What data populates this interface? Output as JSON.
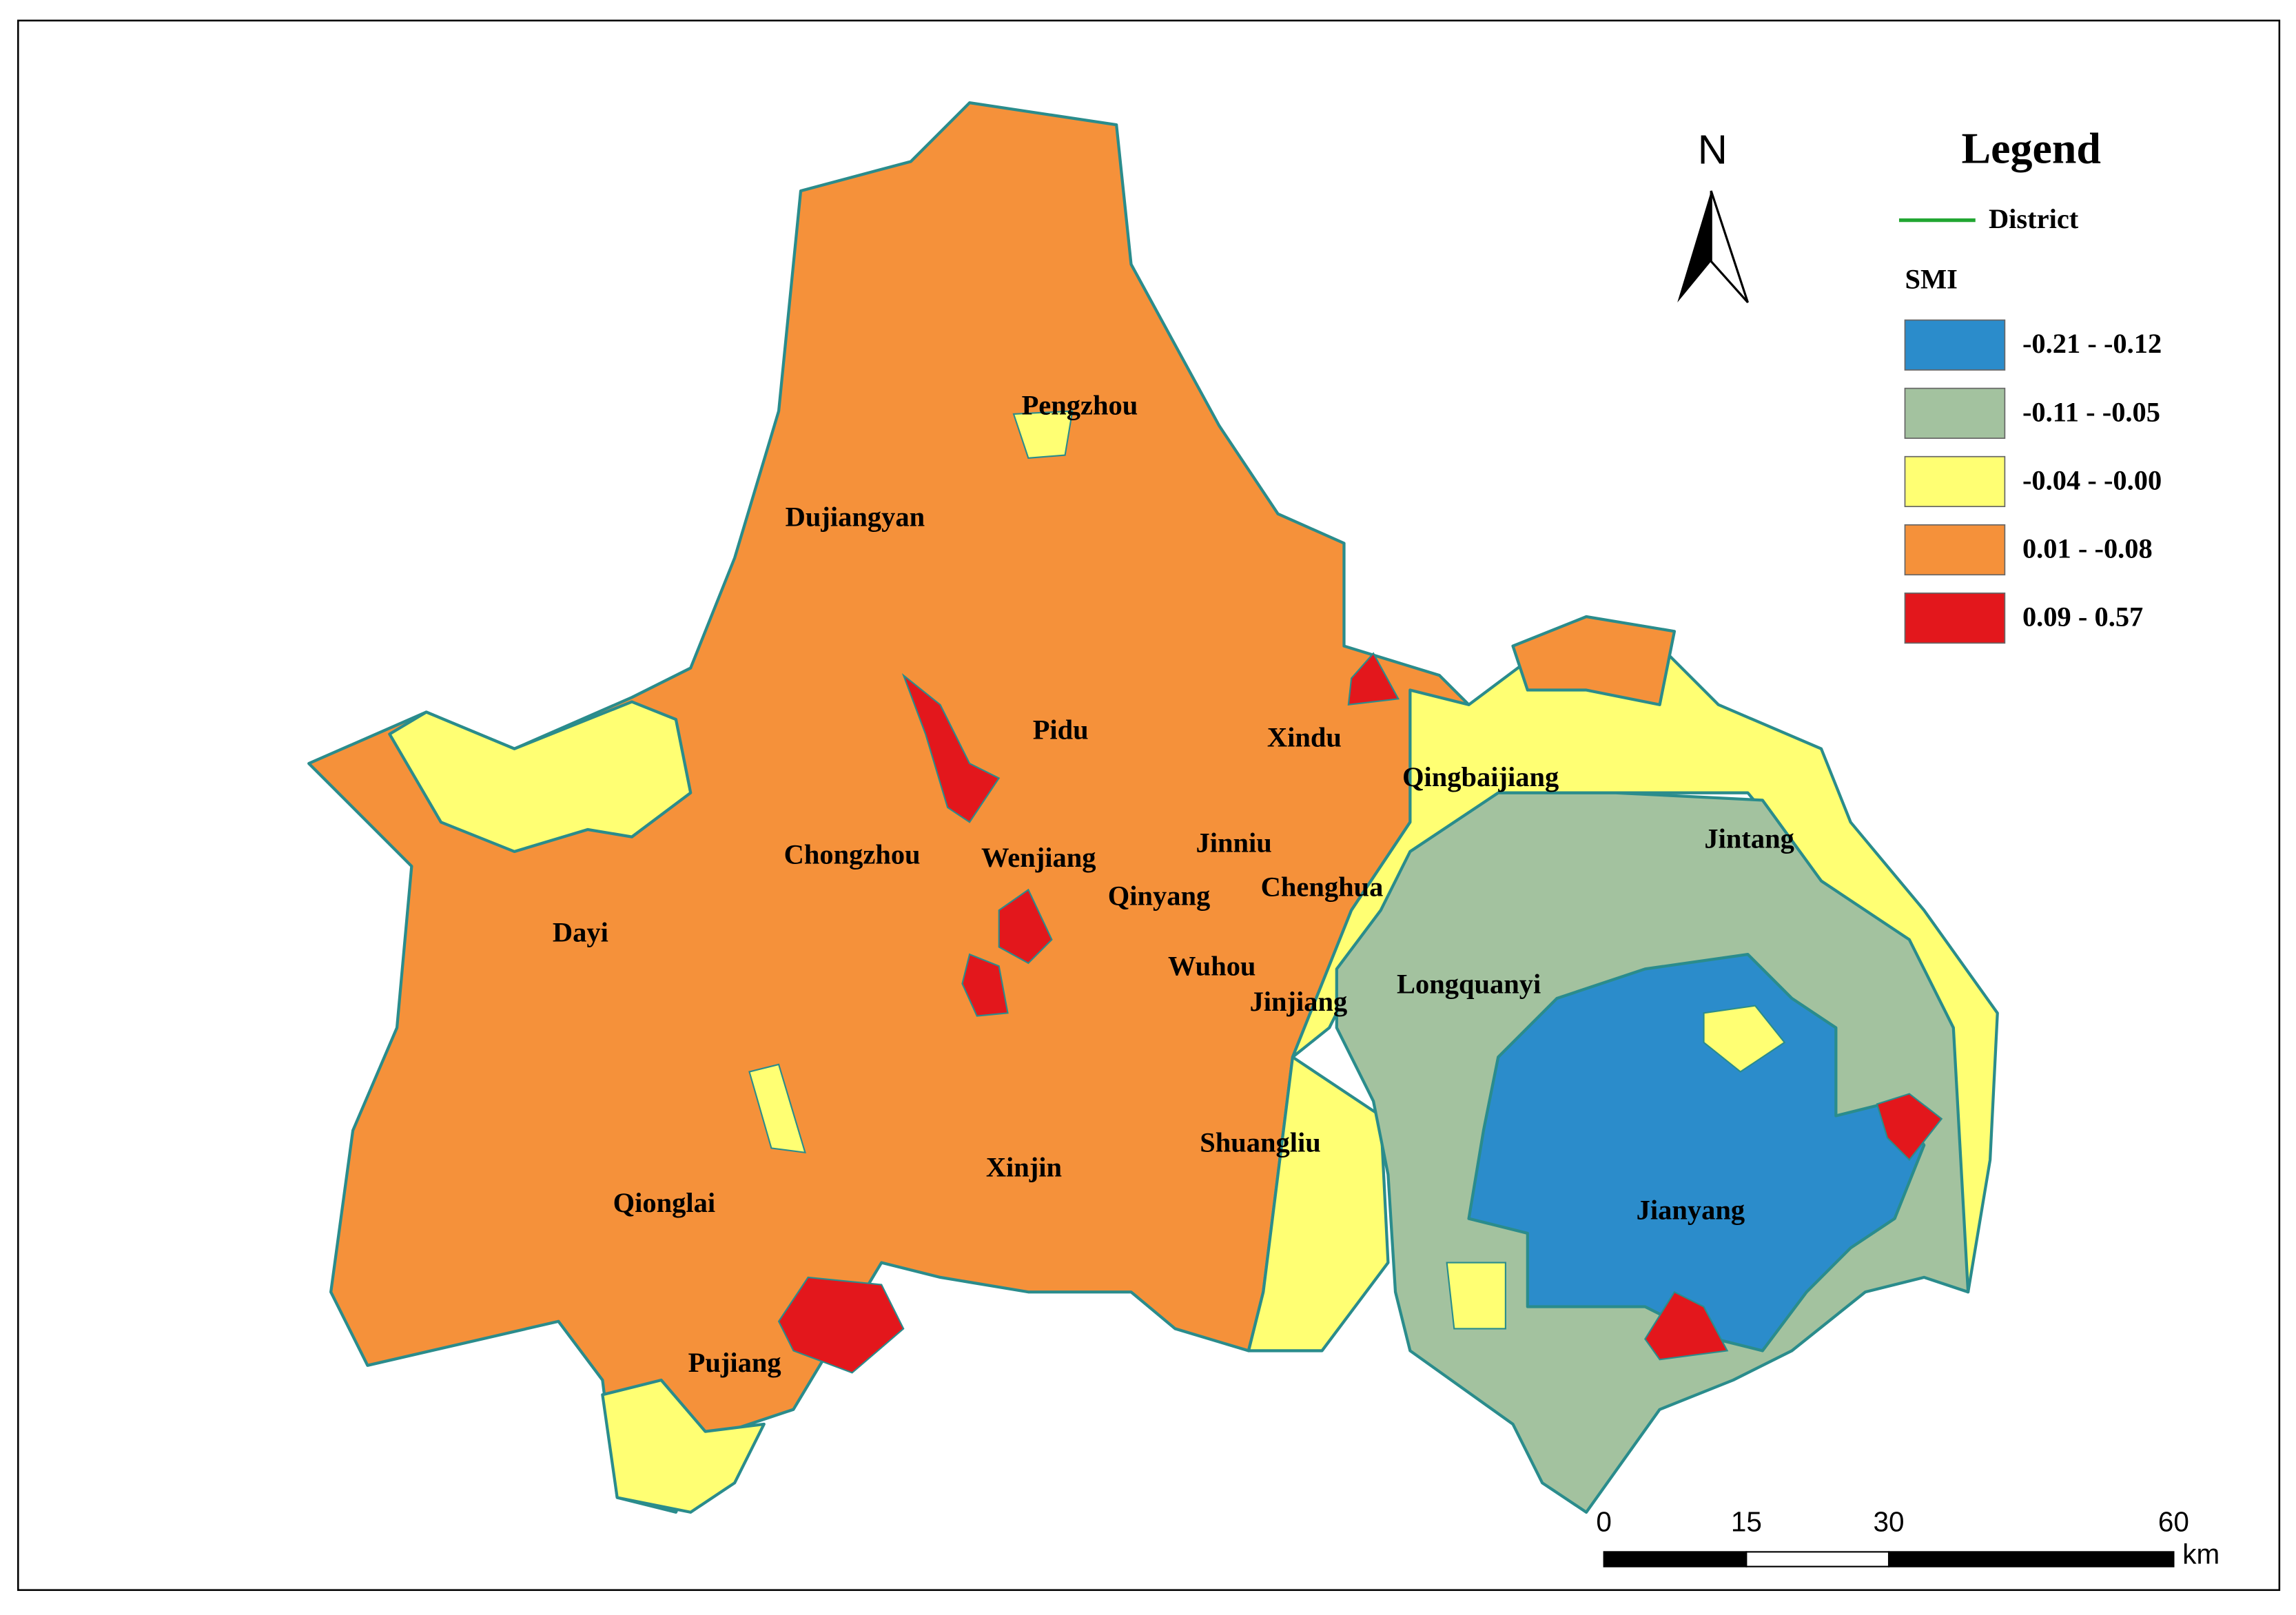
{
  "map": {
    "north": "N",
    "legend": {
      "title": "Legend",
      "district": "District",
      "class_title": "SMI",
      "classes": [
        {
          "label": "-0.21 - -0.12",
          "color": "#2b8ccb"
        },
        {
          "label": "-0.11 - -0.05",
          "color": "#a3c29f"
        },
        {
          "label": "-0.04 - -0.00",
          "color": "#ffff73"
        },
        {
          "label": "0.01 - -0.08",
          "color": "#f5913a"
        },
        {
          "label": "0.09 - 0.57",
          "color": "#e3171c"
        }
      ]
    },
    "districts": [
      "Pengzhou",
      "Dujiangyan",
      "Pidu",
      "Xindu",
      "Qingbaijiang",
      "Jintang",
      "Chongzhou",
      "Wenjiang",
      "Jinniu",
      "Qinyang",
      "Chenghua",
      "Dayi",
      "Wuhou",
      "Jinjiang",
      "Longquanyi",
      "Xinjin",
      "Shuangliu",
      "Jianyang",
      "Qionglai",
      "Pujiang"
    ],
    "scale_bar": {
      "ticks": [
        0,
        15,
        30,
        60
      ],
      "unit": "km"
    }
  }
}
